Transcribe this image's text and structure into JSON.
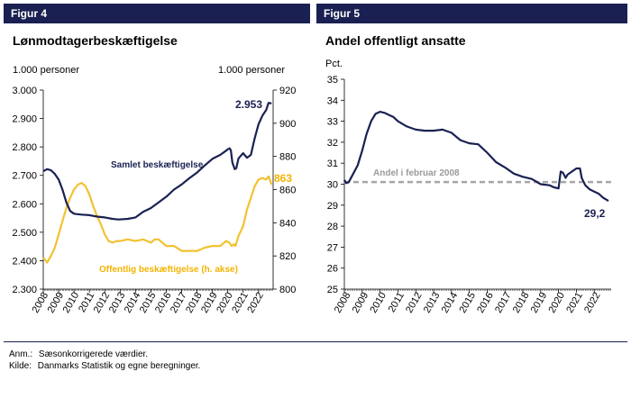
{
  "figures": [
    {
      "label": "Figur 4",
      "title": "Lønmodtagerbeskæftigelse"
    },
    {
      "label": "Figur 5",
      "title": "Andel offentligt ansatte"
    }
  ],
  "chart_data": [
    {
      "type": "line",
      "title": "Lønmodtagerbeskæftigelse",
      "y_left_label": "1.000 personer",
      "y_right_label": "1.000 personer",
      "ylim_left": [
        2300,
        3000
      ],
      "ylim_right": [
        800,
        920
      ],
      "y_left_ticks": [
        "2.300",
        "2.400",
        "2.500",
        "2.600",
        "2.700",
        "2.800",
        "2.900",
        "3.000"
      ],
      "y_right_ticks": [
        "800",
        "820",
        "840",
        "860",
        "880",
        "900",
        "920"
      ],
      "x_ticks": [
        "2008",
        "2009",
        "2010",
        "2011",
        "2012",
        "2013",
        "2014",
        "2015",
        "2016",
        "2017",
        "2018",
        "2019",
        "2020",
        "2021",
        "2022"
      ],
      "xlim": [
        2008,
        2022.95
      ],
      "series": [
        {
          "name": "Samlet beskæftigelse",
          "axis": "left",
          "color": "#1a2152",
          "end_label": "2.953",
          "x": [
            2008.0,
            2008.25,
            2008.5,
            2008.75,
            2009.0,
            2009.25,
            2009.5,
            2009.75,
            2010.0,
            2010.5,
            2011.0,
            2011.5,
            2012.0,
            2012.5,
            2012.9,
            2013.5,
            2014.0,
            2014.5,
            2015.0,
            2015.5,
            2016.0,
            2016.5,
            2017.0,
            2017.5,
            2018.0,
            2018.5,
            2019.0,
            2019.5,
            2019.9,
            2020.0,
            2020.12,
            2020.2,
            2020.3,
            2020.45,
            2020.55,
            2020.7,
            2021.0,
            2021.25,
            2021.5,
            2021.75,
            2022.0,
            2022.25,
            2022.5,
            2022.65,
            2022.85
          ],
          "y": [
            2715,
            2722,
            2718,
            2705,
            2685,
            2650,
            2605,
            2575,
            2565,
            2562,
            2560,
            2555,
            2552,
            2547,
            2545,
            2547,
            2552,
            2572,
            2585,
            2605,
            2625,
            2650,
            2668,
            2690,
            2710,
            2735,
            2758,
            2772,
            2787,
            2792,
            2795,
            2788,
            2745,
            2722,
            2725,
            2760,
            2778,
            2762,
            2772,
            2830,
            2880,
            2910,
            2930,
            2955,
            2953
          ]
        },
        {
          "name": "Offentlig beskæftigelse (h. akse)",
          "axis": "right",
          "color": "#f2c230",
          "end_label": "863",
          "x": [
            2008.0,
            2008.25,
            2008.5,
            2008.75,
            2009.0,
            2009.25,
            2009.5,
            2009.75,
            2010.0,
            2010.25,
            2010.5,
            2010.75,
            2011.0,
            2011.25,
            2011.5,
            2011.75,
            2012.0,
            2012.25,
            2012.5,
            2012.75,
            2013.0,
            2013.5,
            2014.0,
            2014.5,
            2015.0,
            2015.25,
            2015.5,
            2016.0,
            2016.5,
            2017.0,
            2017.5,
            2018.0,
            2018.5,
            2019.0,
            2019.5,
            2019.9,
            2020.1,
            2020.25,
            2020.4,
            2020.5,
            2020.7,
            2021.0,
            2021.25,
            2021.5,
            2021.75,
            2022.0,
            2022.25,
            2022.5,
            2022.65,
            2022.85
          ],
          "y": [
            819,
            816,
            820,
            825,
            833,
            841,
            849,
            855,
            860,
            863,
            864,
            862,
            857,
            850,
            844,
            839,
            833,
            829,
            828,
            829,
            829,
            830,
            829,
            830,
            828,
            830,
            830,
            826,
            826,
            823,
            823,
            823,
            825,
            826,
            826,
            829,
            828,
            826,
            827,
            826,
            832,
            838,
            848,
            855,
            862,
            866,
            867,
            866,
            868,
            863
          ]
        }
      ]
    },
    {
      "type": "line",
      "title": "Andel offentligt ansatte",
      "ylabel": "Pct.",
      "ylim": [
        25,
        35
      ],
      "y_ticks": [
        "25",
        "26",
        "27",
        "28",
        "29",
        "30",
        "31",
        "32",
        "33",
        "34",
        "35"
      ],
      "x_ticks": [
        "2008",
        "2009",
        "2010",
        "2011",
        "2012",
        "2013",
        "2014",
        "2015",
        "2016",
        "2017",
        "2018",
        "2019",
        "2020",
        "2021",
        "2022"
      ],
      "xlim": [
        2008,
        2022.95
      ],
      "reference_line": {
        "value": 30.1,
        "label": "Andel i februar 2008",
        "color": "#a6a6a6"
      },
      "series": [
        {
          "name": "Andel offentligt ansatte",
          "color": "#1a2152",
          "end_label": "29,2",
          "x": [
            2008.0,
            2008.1,
            2008.25,
            2008.5,
            2008.75,
            2009.0,
            2009.25,
            2009.5,
            2009.75,
            2010.0,
            2010.25,
            2010.5,
            2010.75,
            2011.0,
            2011.5,
            2012.0,
            2012.5,
            2013.0,
            2013.5,
            2014.0,
            2014.5,
            2015.0,
            2015.5,
            2016.0,
            2016.5,
            2017.0,
            2017.5,
            2018.0,
            2018.5,
            2019.0,
            2019.5,
            2019.75,
            2020.0,
            2020.12,
            2020.25,
            2020.4,
            2020.5,
            2020.75,
            2021.0,
            2021.2,
            2021.3,
            2021.5,
            2021.75,
            2022.0,
            2022.25,
            2022.5,
            2022.8
          ],
          "y": [
            30.2,
            30.05,
            30.1,
            30.5,
            30.9,
            31.6,
            32.4,
            33.0,
            33.35,
            33.45,
            33.4,
            33.3,
            33.2,
            33.0,
            32.75,
            32.6,
            32.55,
            32.55,
            32.6,
            32.45,
            32.1,
            31.95,
            31.9,
            31.5,
            31.05,
            30.8,
            30.5,
            30.35,
            30.25,
            30.0,
            29.95,
            29.85,
            29.8,
            30.6,
            30.55,
            30.3,
            30.45,
            30.6,
            30.75,
            30.75,
            30.3,
            29.95,
            29.75,
            29.65,
            29.55,
            29.35,
            29.2
          ]
        }
      ]
    }
  ],
  "notes": {
    "anm_label": "Anm.:",
    "anm_text": "Sæsonkorrigerede værdier.",
    "kilde_label": "Kilde:",
    "kilde_text": "Danmarks Statistik og egne beregninger."
  }
}
